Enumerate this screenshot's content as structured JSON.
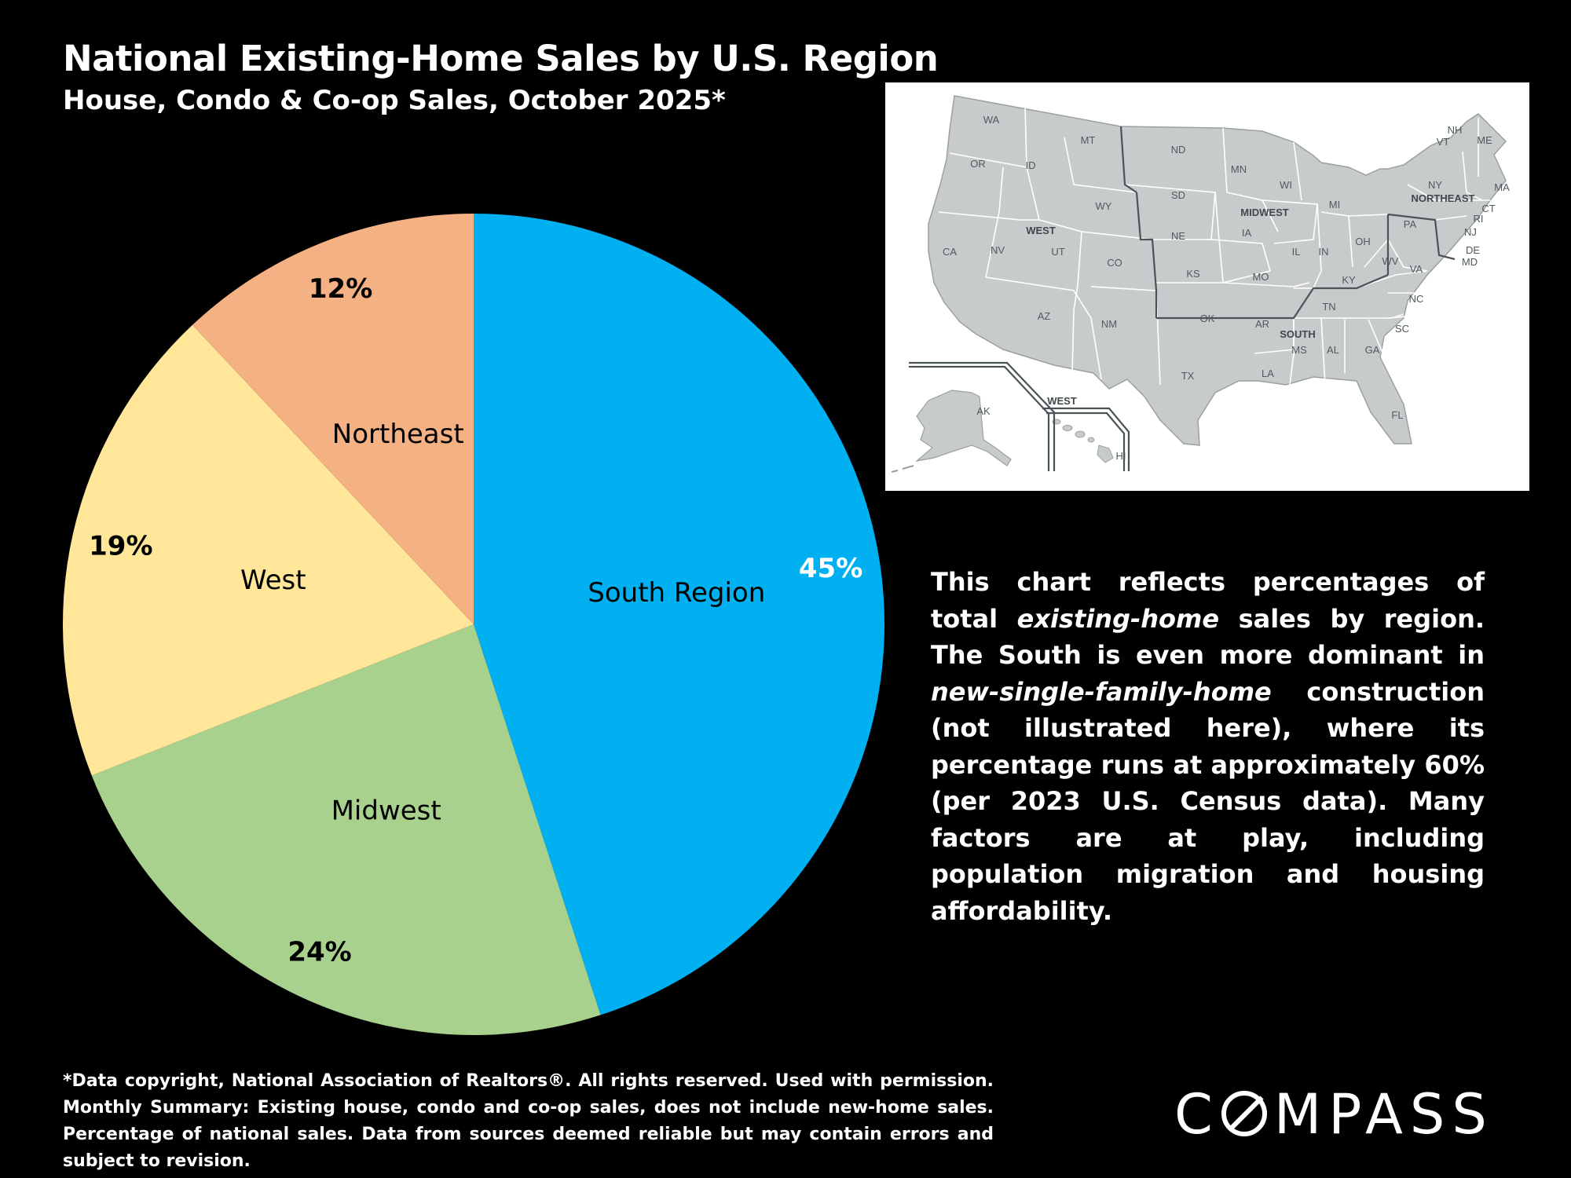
{
  "header": {
    "title": "National Existing-Home Sales by U.S. Region",
    "subtitle": "House, Condo & Co-op Sales, October 2025*"
  },
  "chart_data": {
    "type": "pie",
    "title": "National Existing-Home Sales by U.S. Region",
    "subtitle": "House, Condo & Co-op Sales, October 2025*",
    "start_angle_deg": 0,
    "direction": "clockwise",
    "slices": [
      {
        "label": "South Region",
        "value": 45,
        "value_label": "45%",
        "color": "#00B0F0",
        "label_color": "#000000",
        "value_color": "#ffffff"
      },
      {
        "label": "Midwest",
        "value": 24,
        "value_label": "24%",
        "color": "#A9D18E",
        "label_color": "#000000",
        "value_color": "#000000"
      },
      {
        "label": "West",
        "value": 19,
        "value_label": "19%",
        "color": "#FFE699",
        "label_color": "#000000",
        "value_color": "#000000"
      },
      {
        "label": "Northeast",
        "value": 12,
        "value_label": "12%",
        "color": "#F4B183",
        "label_color": "#000000",
        "value_color": "#000000"
      }
    ]
  },
  "map": {
    "region_labels": [
      "WEST",
      "MIDWEST",
      "NORTHEAST",
      "SOUTH",
      "WEST"
    ],
    "state_labels": [
      "WA",
      "OR",
      "ID",
      "MT",
      "WY",
      "CA",
      "NV",
      "UT",
      "CO",
      "AZ",
      "NM",
      "ND",
      "SD",
      "NE",
      "KS",
      "MN",
      "IA",
      "MO",
      "WI",
      "IL",
      "MI",
      "IN",
      "OH",
      "OK",
      "TX",
      "AR",
      "LA",
      "MS",
      "AL",
      "TN",
      "KY",
      "GA",
      "FL",
      "SC",
      "NC",
      "VA",
      "WV",
      "PA",
      "NY",
      "VT",
      "NH",
      "ME",
      "MA",
      "CT",
      "RI",
      "NJ",
      "DE",
      "MD",
      "AK",
      "HI"
    ],
    "colors": {
      "land": "#C8CBCC",
      "border": "#ffffff",
      "region_border": "#4A5457",
      "text": "#50595C"
    }
  },
  "description": {
    "p1": "This chart reflects percentages of total ",
    "em1": "existing-home",
    "p2": " sales by region. The South is even more dominant in ",
    "em2": "new-single-family-home",
    "p3": " construction (not illustrated here), where its percentage runs at approximately 60% (per 2023 U.S. Census data). Many factors are at play, including population migration and housing affordability."
  },
  "footnote": "*Data copyright, National Association of Realtors®. All rights reserved. Used with permission. Monthly Summary:  Existing house, condo and co-op sales, does not include new-home sales. Percentage of national sales. Data from sources deemed reliable but may contain errors and subject to revision.",
  "logo": {
    "before": "C",
    "after": "MPASS"
  }
}
